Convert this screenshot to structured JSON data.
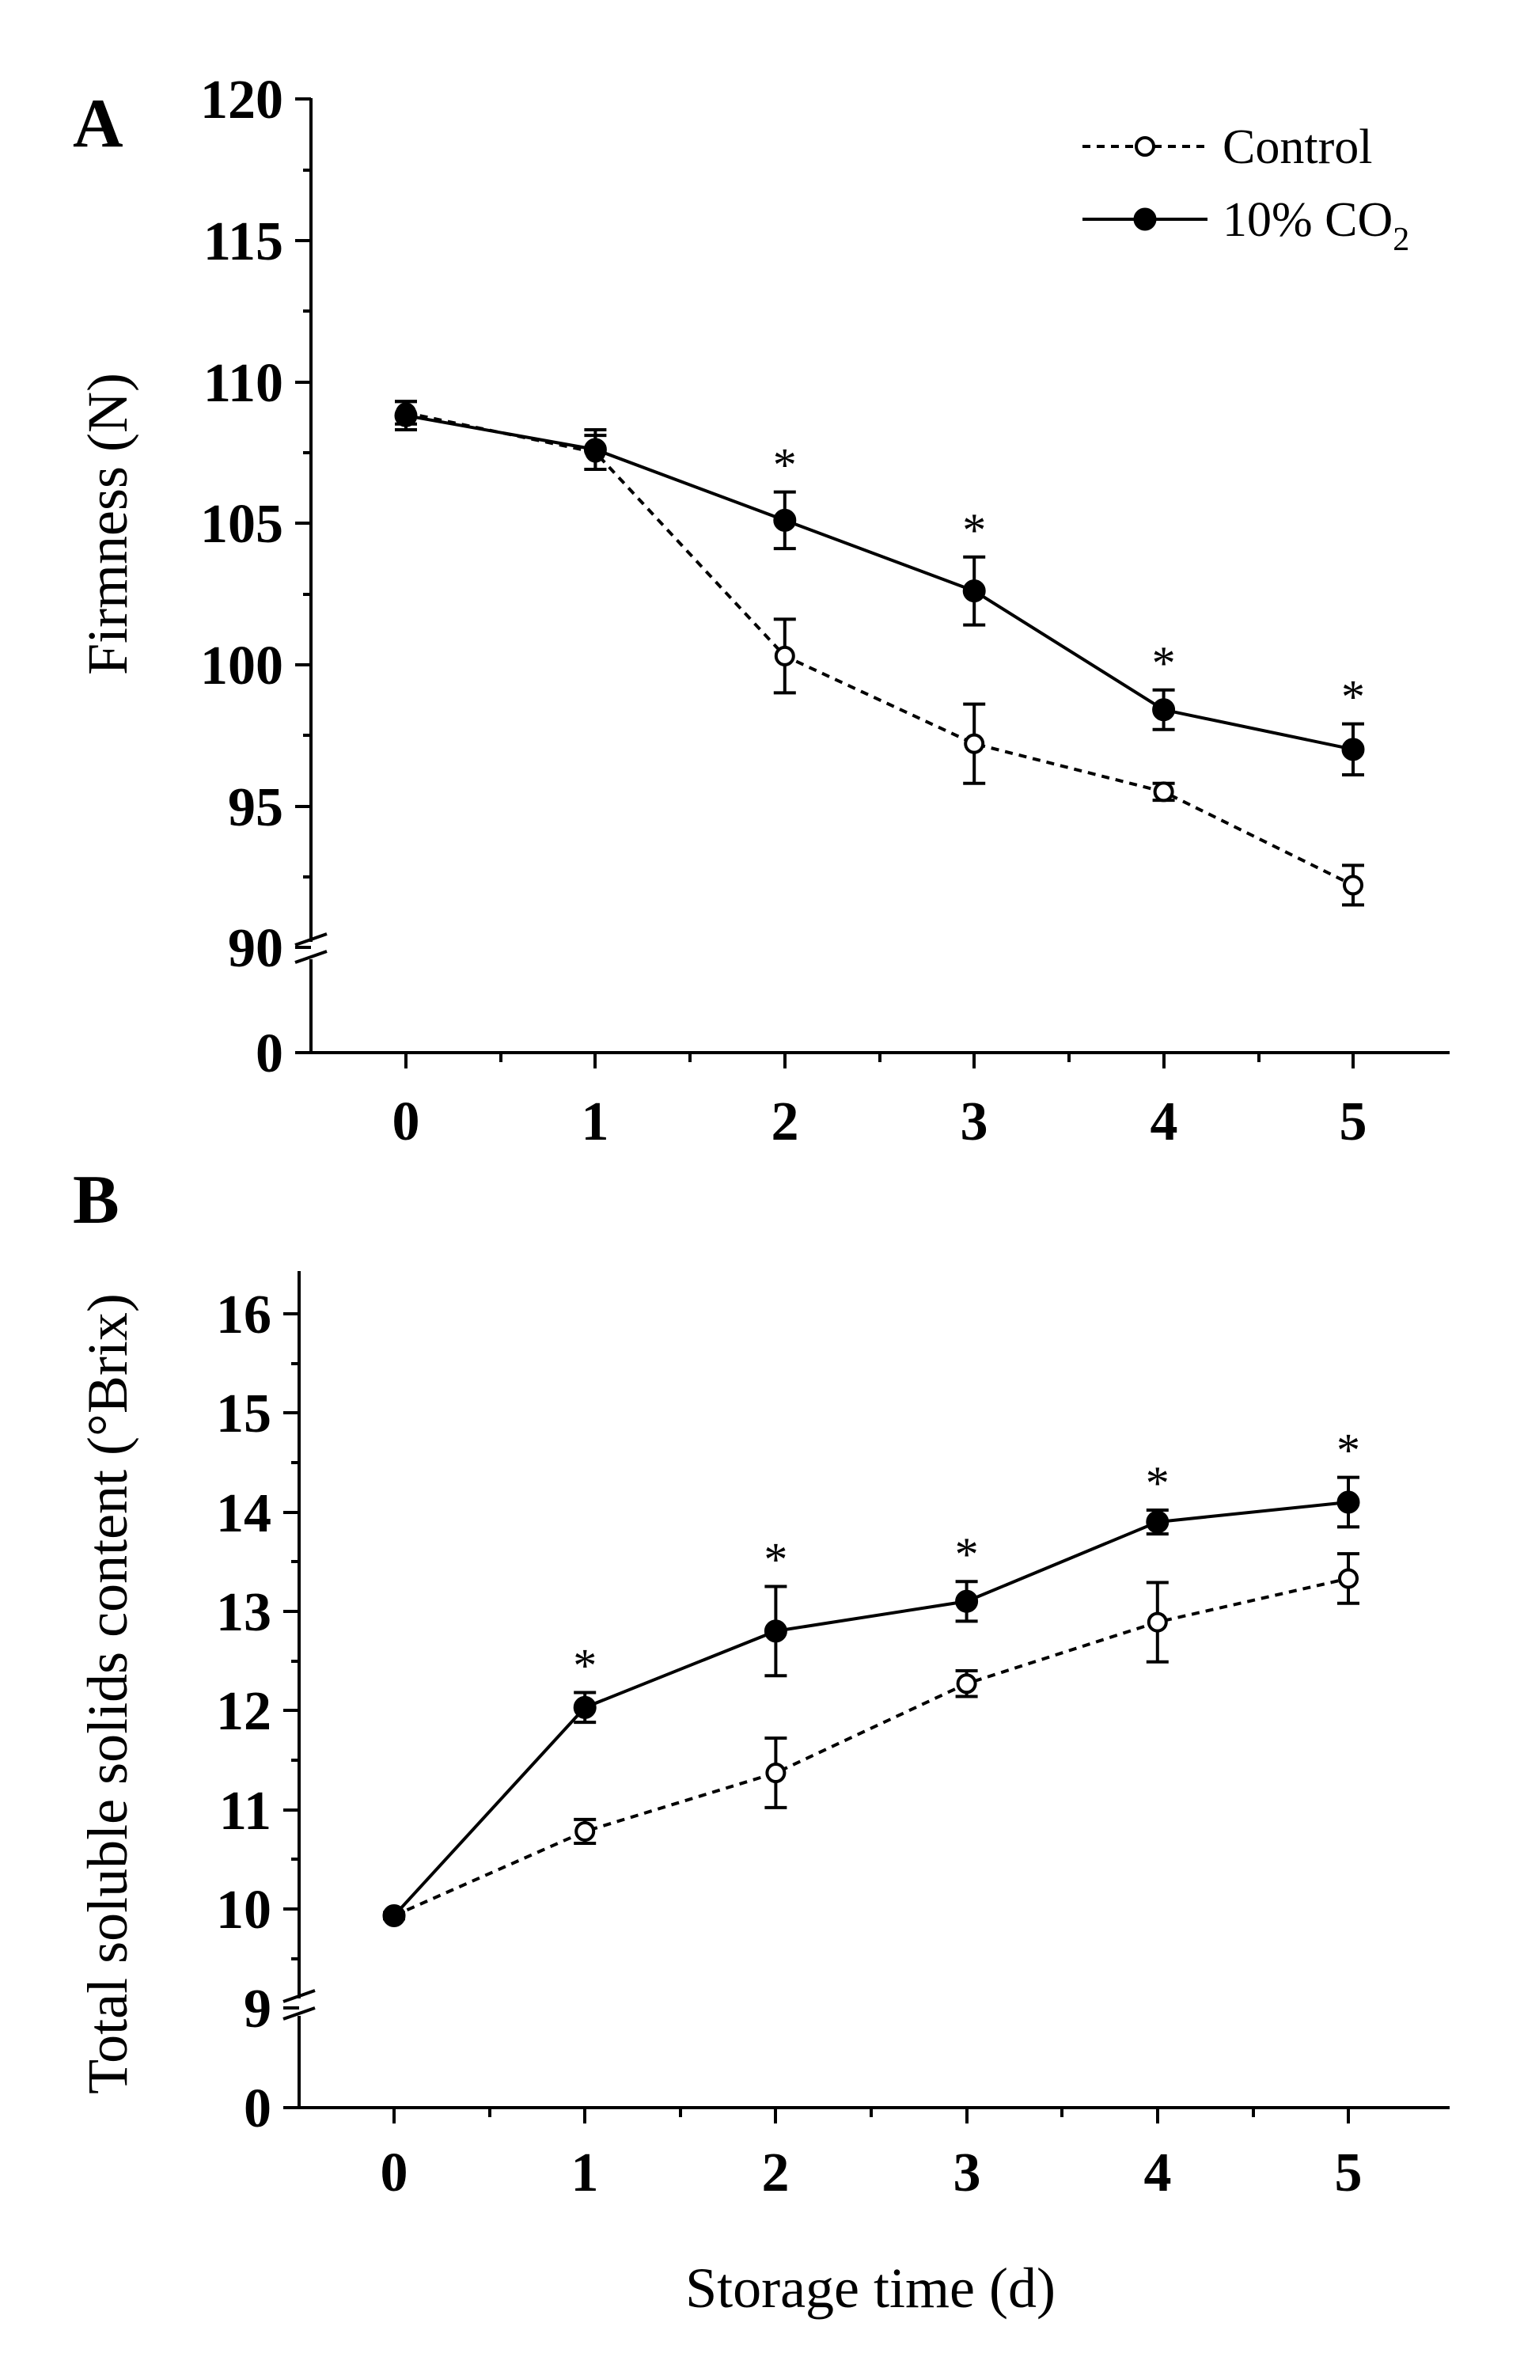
{
  "chart_data": [
    {
      "type": "line",
      "panel_label": "A",
      "ylabel": "Firmness (N)",
      "xlabel": "",
      "x": [
        0,
        1,
        2,
        3,
        4,
        5
      ],
      "x_tick_labels": [
        "0",
        "1",
        "2",
        "3",
        "4",
        "5"
      ],
      "y_tick_labels": [
        "0",
        "90",
        "95",
        "100",
        "105",
        "110",
        "115",
        "120"
      ],
      "ylim": [
        90,
        120
      ],
      "y_axis_break": true,
      "legend_position": "top-right",
      "series": [
        {
          "name": "Control",
          "style": "dashed-open-circle",
          "values": [
            108.9,
            107.5,
            100.3,
            97.2,
            95.5,
            92.2
          ],
          "errors": [
            0.4,
            0.6,
            1.3,
            1.4,
            0.3,
            0.7
          ]
        },
        {
          "name": "10% CO",
          "name_subscript": "2",
          "style": "solid-filled-circle",
          "values": [
            108.8,
            107.6,
            105.1,
            102.6,
            98.4,
            97.0
          ],
          "errors": [
            0.5,
            0.7,
            1.0,
            1.2,
            0.7,
            0.9
          ]
        }
      ],
      "significance_marks": [
        {
          "x": 2,
          "text": "*"
        },
        {
          "x": 3,
          "text": "*"
        },
        {
          "x": 4,
          "text": "*"
        },
        {
          "x": 5,
          "text": "*"
        }
      ]
    },
    {
      "type": "line",
      "panel_label": "B",
      "ylabel": "Total soluble solids content (°Brix)",
      "xlabel": "Storage time (d)",
      "x": [
        0,
        1,
        2,
        3,
        4,
        5
      ],
      "x_tick_labels": [
        "0",
        "1",
        "2",
        "3",
        "4",
        "5"
      ],
      "y_tick_labels": [
        "0",
        "9",
        "10",
        "11",
        "12",
        "13",
        "14",
        "15",
        "16"
      ],
      "ylim": [
        9,
        16.5
      ],
      "y_axis_break": true,
      "series": [
        {
          "name": "Control",
          "style": "dashed-open-circle",
          "values": [
            9.93,
            10.78,
            11.37,
            12.27,
            12.89,
            13.33
          ],
          "errors": [
            0.03,
            0.12,
            0.35,
            0.13,
            0.4,
            0.25
          ]
        },
        {
          "name": "10% CO2",
          "style": "solid-filled-circle",
          "values": [
            9.93,
            12.03,
            12.8,
            13.1,
            13.9,
            14.1
          ],
          "errors": [
            0.03,
            0.15,
            0.45,
            0.2,
            0.12,
            0.25
          ]
        }
      ],
      "significance_marks": [
        {
          "x": 1,
          "text": "*"
        },
        {
          "x": 2,
          "text": "*"
        },
        {
          "x": 3,
          "text": "*"
        },
        {
          "x": 4,
          "text": "*"
        },
        {
          "x": 5,
          "text": "*"
        }
      ]
    }
  ]
}
